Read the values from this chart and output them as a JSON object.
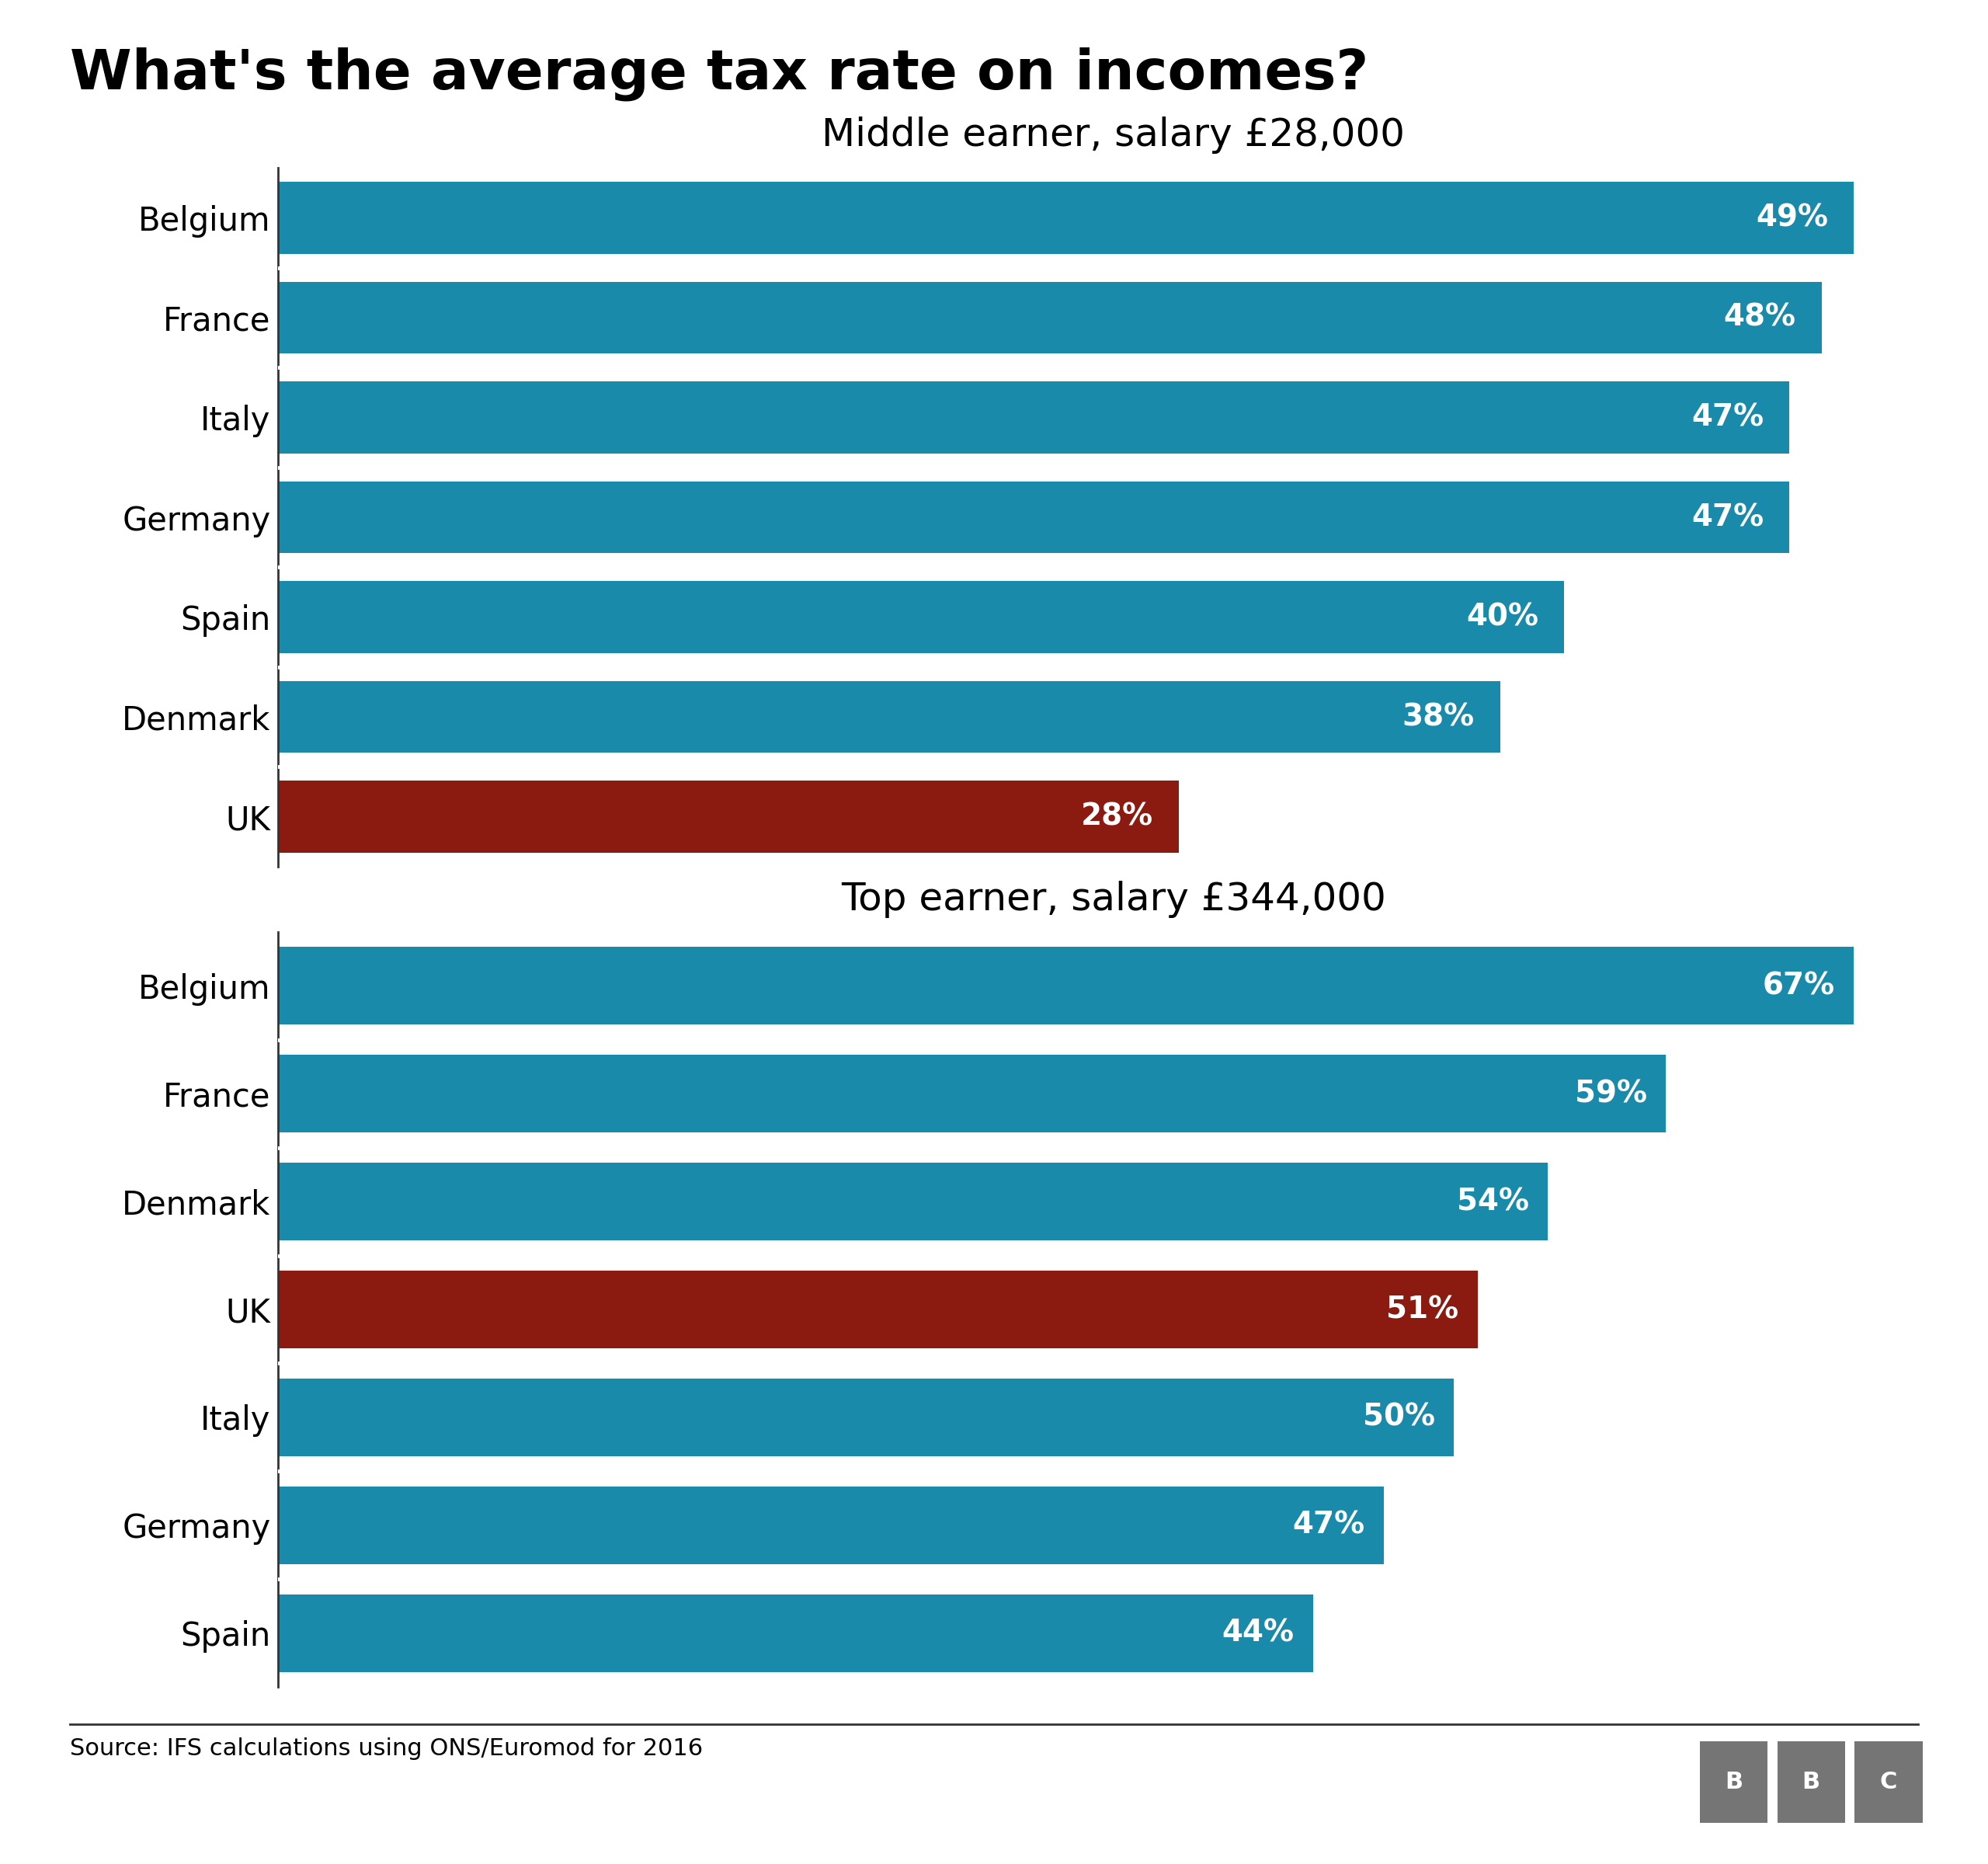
{
  "title": "What's the average tax rate on incomes?",
  "subtitle1": "Middle earner, salary £28,000",
  "subtitle2": "Top earner, salary £344,000",
  "source": "Source: IFS calculations using ONS/Euromod for 2016",
  "chart1": {
    "countries": [
      "Belgium",
      "France",
      "Italy",
      "Germany",
      "Spain",
      "Denmark",
      "UK"
    ],
    "values": [
      49,
      48,
      47,
      47,
      40,
      38,
      28
    ],
    "colors": [
      "#1a8aaa",
      "#1a8aaa",
      "#1a8aaa",
      "#1a8aaa",
      "#1a8aaa",
      "#1a8aaa",
      "#8b1a10"
    ]
  },
  "chart2": {
    "countries": [
      "Belgium",
      "France",
      "Denmark",
      "UK",
      "Italy",
      "Germany",
      "Spain"
    ],
    "values": [
      67,
      59,
      54,
      51,
      50,
      47,
      44
    ],
    "colors": [
      "#1a8aaa",
      "#1a8aaa",
      "#1a8aaa",
      "#8b1a10",
      "#1a8aaa",
      "#1a8aaa",
      "#1a8aaa"
    ]
  },
  "bar_color_blue": "#1a8aaa",
  "bar_color_red": "#8b1a10",
  "title_fontsize": 52,
  "subtitle_fontsize": 36,
  "label_fontsize": 30,
  "value_fontsize": 28,
  "source_fontsize": 22,
  "bbc_fontsize": 22,
  "background_color": "#ffffff",
  "text_color": "#000000",
  "value_text_color": "#ffffff",
  "spine_color": "#333333",
  "separator_color": "#ffffff",
  "line_color": "#333333",
  "bbc_bg": "#757575"
}
